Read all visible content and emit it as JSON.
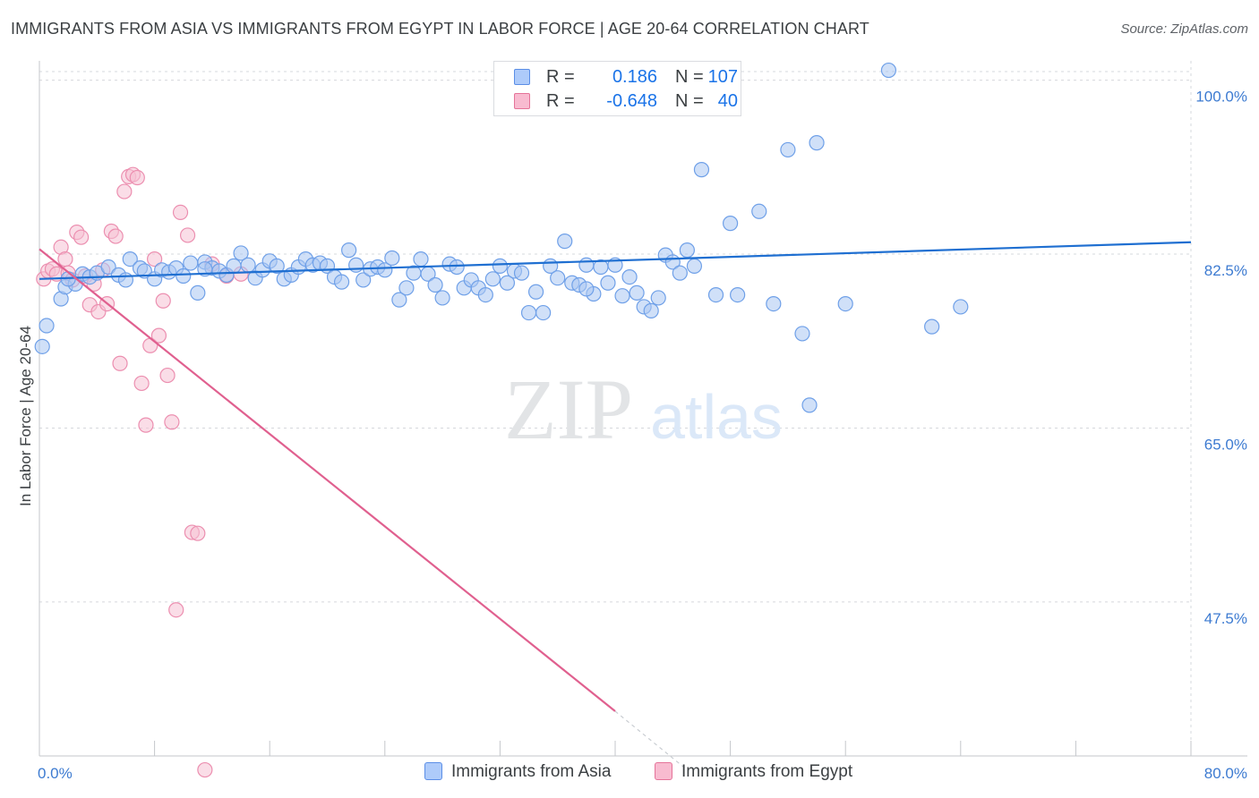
{
  "title": "IMMIGRANTS FROM ASIA VS IMMIGRANTS FROM EGYPT IN LABOR FORCE | AGE 20-64 CORRELATION CHART",
  "source": "Source: ZipAtlas.com",
  "watermark": {
    "zip": "ZIP",
    "atlas": "atlas"
  },
  "legend": {
    "rows": [
      {
        "r_label": "R =",
        "r_value": "0.186",
        "n_label": "N =",
        "n_value": "107",
        "fill": "#aecbfa",
        "stroke": "#5b8ee6"
      },
      {
        "r_label": "R =",
        "r_value": "-0.648",
        "n_label": "N =",
        "n_value": "40",
        "fill": "#f8bbd0",
        "stroke": "#e57399"
      }
    ]
  },
  "colors": {
    "asia": "#6fa0e8",
    "asia_fill": "#a9c7f2",
    "asia_line": "#1f6fd1",
    "egypt": "#ec8fb0",
    "egypt_fill": "#f6c1d4",
    "egypt_line": "#e0608f",
    "tick_label": "#3d7bd1"
  },
  "chart_data": {
    "type": "scatter",
    "title": "IMMIGRANTS FROM ASIA VS IMMIGRANTS FROM EGYPT IN LABOR FORCE | AGE 20-64 CORRELATION CHART",
    "xlabel": "",
    "ylabel": "In Labor Force | Age 20-64",
    "xlim": [
      0,
      80
    ],
    "ylim": [
      32,
      101.5
    ],
    "x_tick_labels": [
      "0.0%",
      "80.0%"
    ],
    "y_ticks": [
      47.5,
      65.0,
      82.5,
      100.0
    ],
    "y_tick_labels": [
      "47.5%",
      "65.0%",
      "82.5%",
      "100.0%"
    ],
    "grid": true,
    "legend_position": "top-center",
    "series": [
      {
        "name": "Immigrants from Asia",
        "r": 0.186,
        "n": 107,
        "trend": {
          "x": [
            0,
            80
          ],
          "y": [
            80.0,
            83.7
          ]
        },
        "points": [
          [
            0.5,
            75.3
          ],
          [
            0.2,
            73.2
          ],
          [
            1.5,
            78.0
          ],
          [
            1.8,
            79.2
          ],
          [
            2.5,
            79.5
          ],
          [
            3.0,
            80.5
          ],
          [
            3.5,
            80.2
          ],
          [
            4.0,
            80.6
          ],
          [
            4.8,
            81.2
          ],
          [
            5.5,
            80.4
          ],
          [
            6.0,
            79.9
          ],
          [
            6.3,
            82.0
          ],
          [
            7.0,
            81.1
          ],
          [
            7.3,
            80.8
          ],
          [
            8.0,
            80.0
          ],
          [
            8.5,
            80.9
          ],
          [
            9.0,
            80.7
          ],
          [
            9.5,
            81.1
          ],
          [
            10.0,
            80.3
          ],
          [
            10.5,
            81.6
          ],
          [
            11.0,
            78.6
          ],
          [
            11.5,
            81.7
          ],
          [
            12.0,
            81.1
          ],
          [
            12.5,
            80.8
          ],
          [
            13.0,
            80.4
          ],
          [
            13.5,
            81.3
          ],
          [
            14.0,
            82.6
          ],
          [
            14.5,
            81.4
          ],
          [
            15.0,
            80.1
          ],
          [
            15.5,
            80.9
          ],
          [
            16.0,
            81.8
          ],
          [
            16.5,
            81.3
          ],
          [
            17.0,
            80.0
          ],
          [
            17.5,
            80.4
          ],
          [
            18.0,
            81.2
          ],
          [
            18.5,
            82.0
          ],
          [
            19.0,
            81.4
          ],
          [
            19.5,
            81.6
          ],
          [
            20.0,
            81.3
          ],
          [
            20.5,
            80.2
          ],
          [
            21.0,
            79.7
          ],
          [
            21.5,
            82.9
          ],
          [
            22.0,
            81.4
          ],
          [
            22.5,
            79.9
          ],
          [
            23.0,
            81.0
          ],
          [
            23.5,
            81.2
          ],
          [
            24.0,
            80.9
          ],
          [
            24.5,
            82.1
          ],
          [
            25.0,
            77.9
          ],
          [
            25.5,
            79.1
          ],
          [
            26.0,
            80.6
          ],
          [
            26.5,
            82.0
          ],
          [
            27.0,
            80.5
          ],
          [
            27.5,
            79.4
          ],
          [
            28.0,
            78.1
          ],
          [
            28.5,
            81.5
          ],
          [
            29.0,
            81.2
          ],
          [
            29.5,
            79.1
          ],
          [
            30.0,
            79.9
          ],
          [
            30.5,
            79.1
          ],
          [
            31.0,
            78.4
          ],
          [
            31.5,
            80.0
          ],
          [
            32.0,
            81.3
          ],
          [
            32.5,
            79.6
          ],
          [
            33.0,
            80.8
          ],
          [
            33.5,
            80.6
          ],
          [
            34.0,
            76.6
          ],
          [
            34.5,
            78.7
          ],
          [
            35.0,
            76.6
          ],
          [
            35.5,
            81.3
          ],
          [
            36.0,
            80.1
          ],
          [
            36.5,
            83.8
          ],
          [
            37.0,
            79.6
          ],
          [
            37.5,
            79.4
          ],
          [
            38.0,
            81.4
          ],
          [
            38.5,
            78.5
          ],
          [
            39.0,
            81.2
          ],
          [
            39.5,
            79.6
          ],
          [
            40.0,
            81.4
          ],
          [
            40.5,
            78.3
          ],
          [
            41.0,
            80.2
          ],
          [
            41.5,
            78.6
          ],
          [
            42.0,
            77.2
          ],
          [
            42.5,
            76.8
          ],
          [
            43.0,
            78.1
          ],
          [
            43.5,
            82.4
          ],
          [
            44.0,
            81.7
          ],
          [
            44.5,
            80.6
          ],
          [
            45.0,
            82.9
          ],
          [
            45.5,
            81.3
          ],
          [
            46.0,
            91.0
          ],
          [
            47.0,
            78.4
          ],
          [
            48.0,
            85.6
          ],
          [
            48.5,
            78.4
          ],
          [
            50.0,
            86.8
          ],
          [
            51.0,
            77.5
          ],
          [
            52.0,
            93.0
          ],
          [
            53.0,
            74.5
          ],
          [
            53.5,
            67.3
          ],
          [
            54.0,
            93.7
          ],
          [
            56.0,
            77.5
          ],
          [
            59.0,
            101.0
          ],
          [
            62.0,
            75.2
          ],
          [
            64.0,
            77.2
          ],
          [
            38.0,
            79.0
          ],
          [
            11.5,
            81.0
          ],
          [
            2.0,
            80.0
          ]
        ]
      },
      {
        "name": "Immigrants from Egypt",
        "r": -0.648,
        "n": 40,
        "trend": {
          "x": [
            0,
            40
          ],
          "y": [
            83.0,
            36.5
          ]
        },
        "trend_dashed": {
          "x": [
            40,
            45
          ],
          "y": [
            36.5,
            30.6
          ]
        },
        "points": [
          [
            0.3,
            80.0
          ],
          [
            0.6,
            80.8
          ],
          [
            0.9,
            81.0
          ],
          [
            1.2,
            80.5
          ],
          [
            1.5,
            83.2
          ],
          [
            1.8,
            82.0
          ],
          [
            2.0,
            80.6
          ],
          [
            2.3,
            79.9
          ],
          [
            2.6,
            84.7
          ],
          [
            2.9,
            84.2
          ],
          [
            3.2,
            80.3
          ],
          [
            3.5,
            77.4
          ],
          [
            3.8,
            79.5
          ],
          [
            4.1,
            76.7
          ],
          [
            4.4,
            80.9
          ],
          [
            4.7,
            77.5
          ],
          [
            5.0,
            84.8
          ],
          [
            5.3,
            84.3
          ],
          [
            5.6,
            71.5
          ],
          [
            5.9,
            88.8
          ],
          [
            6.2,
            90.3
          ],
          [
            6.5,
            90.5
          ],
          [
            6.8,
            90.2
          ],
          [
            7.1,
            69.5
          ],
          [
            7.4,
            65.3
          ],
          [
            7.7,
            73.3
          ],
          [
            8.0,
            82.0
          ],
          [
            8.3,
            74.3
          ],
          [
            8.6,
            77.8
          ],
          [
            8.9,
            70.3
          ],
          [
            9.2,
            65.6
          ],
          [
            9.5,
            46.7
          ],
          [
            9.8,
            86.7
          ],
          [
            10.3,
            84.4
          ],
          [
            10.6,
            54.5
          ],
          [
            11.0,
            54.4
          ],
          [
            11.5,
            30.6
          ],
          [
            12.0,
            81.5
          ],
          [
            13.0,
            80.3
          ],
          [
            14.0,
            80.5
          ]
        ]
      }
    ]
  },
  "bottom_legend": {
    "asia": "Immigrants from Asia",
    "egypt": "Immigrants from Egypt"
  }
}
